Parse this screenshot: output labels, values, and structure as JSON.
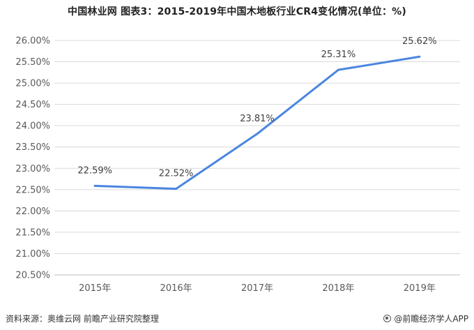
{
  "chart_data": {
    "type": "line",
    "title": "中国林业网 图表3：2015-2019年中国木地板行业CR4变化情况(单位：%)",
    "categories": [
      "2015年",
      "2016年",
      "2017年",
      "2018年",
      "2019年"
    ],
    "series": [
      {
        "values": [
          22.59,
          22.52,
          23.81,
          25.31,
          25.62
        ]
      }
    ],
    "data_labels": [
      "22.59%",
      "22.52%",
      "23.81%",
      "25.31%",
      "25.62%"
    ],
    "y_ticks": [
      "20.50%",
      "21.00%",
      "21.50%",
      "22.00%",
      "22.50%",
      "23.00%",
      "23.50%",
      "24.00%",
      "24.50%",
      "25.00%",
      "25.50%",
      "26.00%"
    ],
    "ylim": [
      20.5,
      26.0
    ],
    "ystep": 0.5,
    "grid": true,
    "line_color": "#4a86e0",
    "xlabel": "",
    "ylabel": ""
  },
  "footer": {
    "source": "资料来源：奥维云网 前瞻产业研究院整理",
    "brand": "@前瞻经济学人APP"
  }
}
